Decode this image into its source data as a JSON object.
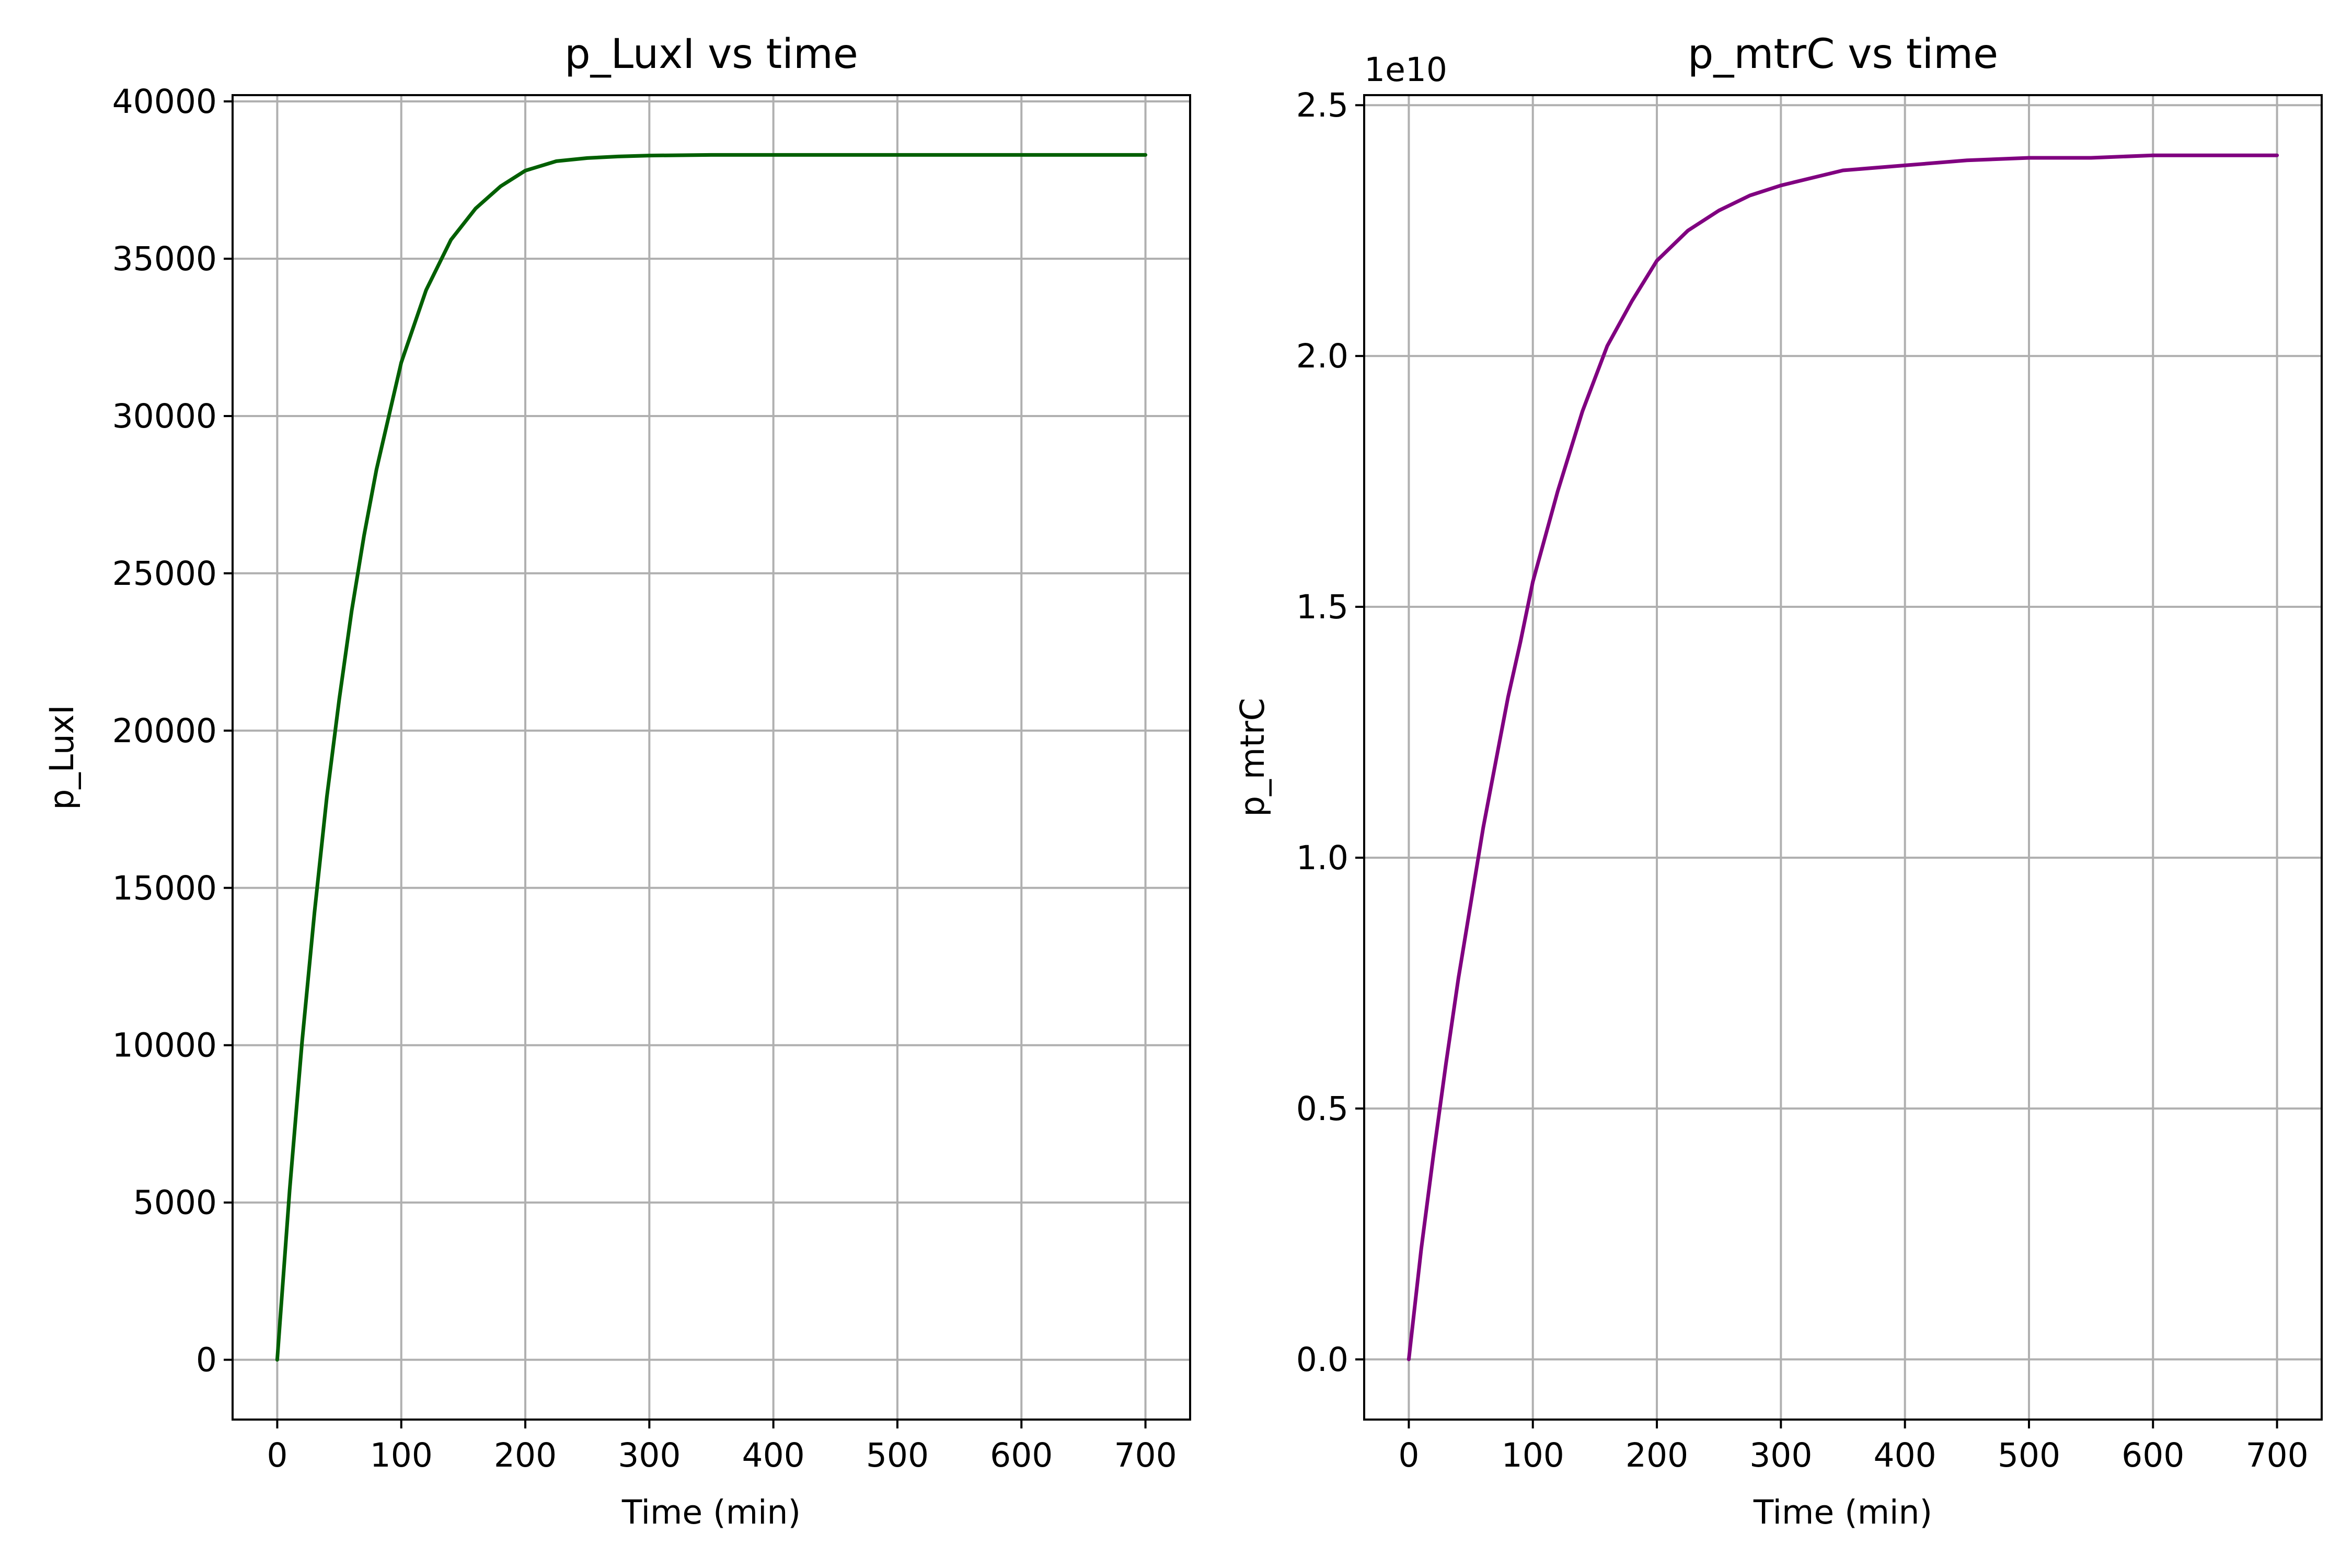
{
  "chart_data": [
    {
      "type": "line",
      "title": "p_LuxI vs time",
      "xlabel": "Time (min)",
      "ylabel": "p_LuxI",
      "xlim": [
        -36,
        736
      ],
      "ylim": [
        -1900,
        40200
      ],
      "xticks": [
        0,
        100,
        200,
        300,
        400,
        500,
        600,
        700
      ],
      "yticks": [
        0,
        5000,
        10000,
        15000,
        20000,
        25000,
        30000,
        35000,
        40000
      ],
      "ytick_labels": [
        "0",
        "5000",
        "10000",
        "15000",
        "20000",
        "25000",
        "30000",
        "35000",
        "40000"
      ],
      "offset_text": "",
      "grid": true,
      "color": "#005f00",
      "series": [
        {
          "x": [
            0,
            10,
            20,
            30,
            40,
            50,
            60,
            70,
            80,
            90,
            100,
            120,
            140,
            160,
            180,
            200,
            225,
            250,
            275,
            300,
            350,
            400,
            450,
            500,
            550,
            600,
            650,
            700
          ],
          "values": [
            0,
            5400,
            10100,
            14200,
            17900,
            21000,
            23800,
            26200,
            28300,
            30000,
            31700,
            34000,
            35600,
            36600,
            37300,
            37800,
            38100,
            38200,
            38250,
            38280,
            38300,
            38300,
            38300,
            38300,
            38300,
            38300,
            38300,
            38300
          ]
        }
      ]
    },
    {
      "type": "line",
      "title": "p_mtrC vs time",
      "xlabel": "Time (min)",
      "ylabel": "p_mtrC",
      "xlim": [
        -36,
        736
      ],
      "ylim": [
        -1.2,
        25.2
      ],
      "xticks": [
        0,
        100,
        200,
        300,
        400,
        500,
        600,
        700
      ],
      "yticks": [
        0,
        5,
        10,
        15,
        20,
        25
      ],
      "ytick_labels": [
        "0.0",
        "0.5",
        "1.0",
        "1.5",
        "2.0",
        "2.5"
      ],
      "offset_text": "1e10",
      "grid": true,
      "color": "#800080",
      "series": [
        {
          "x": [
            0,
            10,
            20,
            30,
            40,
            50,
            60,
            70,
            80,
            90,
            100,
            120,
            140,
            160,
            180,
            200,
            225,
            250,
            275,
            300,
            350,
            400,
            450,
            500,
            550,
            600,
            650,
            700
          ],
          "values": [
            0,
            2.2,
            4.1,
            5.9,
            7.6,
            9.1,
            10.6,
            11.9,
            13.2,
            14.3,
            15.5,
            17.3,
            18.9,
            20.2,
            21.1,
            21.9,
            22.5,
            22.9,
            23.2,
            23.4,
            23.7,
            23.8,
            23.9,
            23.95,
            23.95,
            24.0,
            24.0,
            24.0
          ]
        }
      ]
    }
  ]
}
